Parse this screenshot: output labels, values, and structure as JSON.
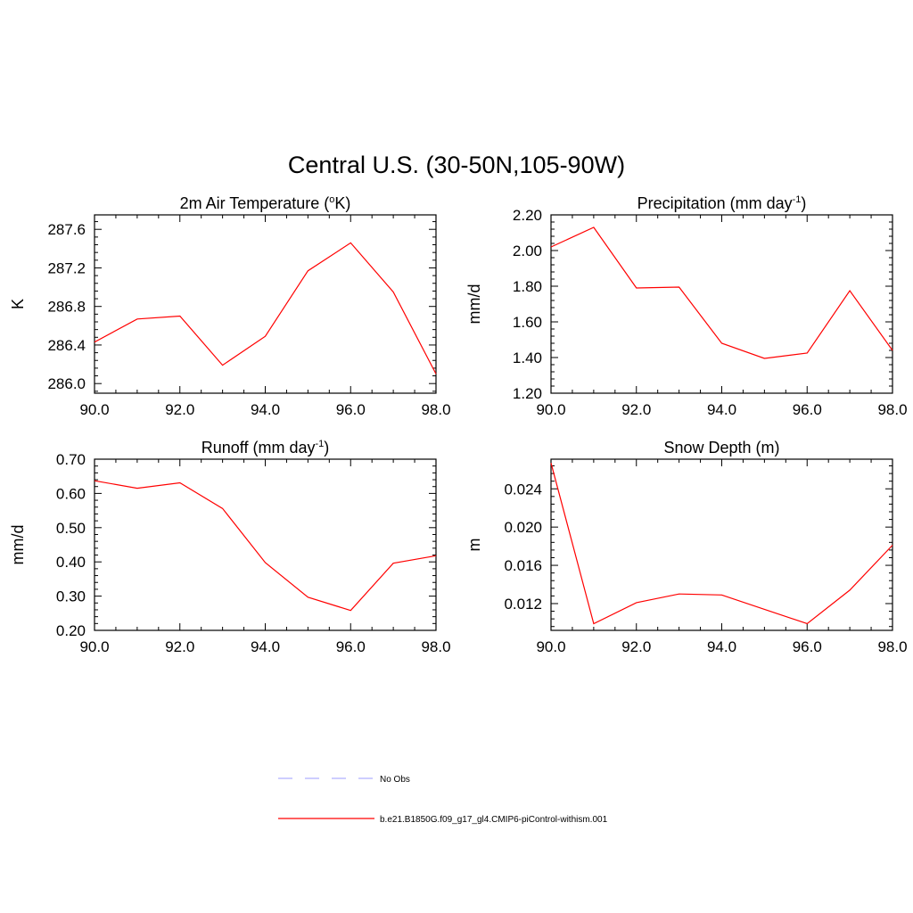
{
  "title": "Central U.S. (30-50N,105-90W)",
  "chart_data": [
    {
      "type": "line",
      "title": "2m Air Temperature (",
      "title_sup": "o",
      "title_end": "K)",
      "ylabel": "K",
      "x": [
        90,
        91,
        92,
        93,
        94,
        95,
        96,
        97,
        98
      ],
      "xlim": [
        90,
        98
      ],
      "xticks": [
        "90.0",
        "92.0",
        "94.0",
        "96.0",
        "98.0"
      ],
      "ylim": [
        285.9,
        287.75
      ],
      "yticks": [
        "286.0",
        "286.4",
        "286.8",
        "287.2",
        "287.6"
      ],
      "series": [
        {
          "name": "b.e21.B1850G.f09_g17_gl4.CMIP6-piControl-withism.001",
          "values": [
            286.43,
            286.67,
            286.7,
            286.19,
            286.49,
            287.17,
            287.46,
            286.95,
            286.1
          ]
        }
      ]
    },
    {
      "type": "line",
      "title": "Precipitation (mm day",
      "title_sup": "-1",
      "title_end": ")",
      "ylabel": "mm/d",
      "x": [
        90,
        91,
        92,
        93,
        94,
        95,
        96,
        97,
        98
      ],
      "xlim": [
        90,
        98
      ],
      "xticks": [
        "90.0",
        "92.0",
        "94.0",
        "96.0",
        "98.0"
      ],
      "ylim": [
        1.2,
        2.2
      ],
      "yticks": [
        "1.20",
        "1.40",
        "1.60",
        "1.80",
        "2.00",
        "2.20"
      ],
      "series": [
        {
          "name": "b.e21.B1850G.f09_g17_gl4.CMIP6-piControl-withism.001",
          "values": [
            2.02,
            2.13,
            1.79,
            1.795,
            1.48,
            1.395,
            1.425,
            1.775,
            1.44
          ]
        }
      ]
    },
    {
      "type": "line",
      "title": "Runoff (mm day",
      "title_sup": "-1",
      "title_end": ")",
      "ylabel": "mm/d",
      "x": [
        90,
        91,
        92,
        93,
        94,
        95,
        96,
        97,
        98
      ],
      "xlim": [
        90,
        98
      ],
      "xticks": [
        "90.0",
        "92.0",
        "94.0",
        "96.0",
        "98.0"
      ],
      "ylim": [
        0.2,
        0.7
      ],
      "yticks": [
        "0.20",
        "0.30",
        "0.40",
        "0.50",
        "0.60",
        "0.70"
      ],
      "series": [
        {
          "name": "b.e21.B1850G.f09_g17_gl4.CMIP6-piControl-withism.001",
          "values": [
            0.637,
            0.615,
            0.631,
            0.556,
            0.398,
            0.297,
            0.258,
            0.396,
            0.418
          ]
        }
      ]
    },
    {
      "type": "line",
      "title": "Snow Depth (m)",
      "title_sup": "",
      "title_end": "",
      "ylabel": "m",
      "x": [
        90,
        91,
        92,
        93,
        94,
        95,
        96,
        97,
        98
      ],
      "xlim": [
        90,
        98
      ],
      "xticks": [
        "90.0",
        "92.0",
        "94.0",
        "96.0",
        "98.0"
      ],
      "ylim": [
        0.0092,
        0.0271
      ],
      "yticks": [
        "0.012",
        "0.016",
        "0.020",
        "0.024"
      ],
      "series": [
        {
          "name": "b.e21.B1850G.f09_g17_gl4.CMIP6-piControl-withism.001",
          "values": [
            0.0267,
            0.0099,
            0.0121,
            0.013,
            0.0129,
            0.0114,
            0.0099,
            0.0134,
            0.0181
          ]
        }
      ]
    }
  ],
  "legend": [
    {
      "label": "No Obs",
      "color": "#b0b0ff",
      "style": "dashed"
    },
    {
      "label": "b.e21.B1850G.f09_g17_gl4.CMIP6-piControl-withism.001",
      "color": "#ff0000",
      "style": "solid"
    }
  ]
}
